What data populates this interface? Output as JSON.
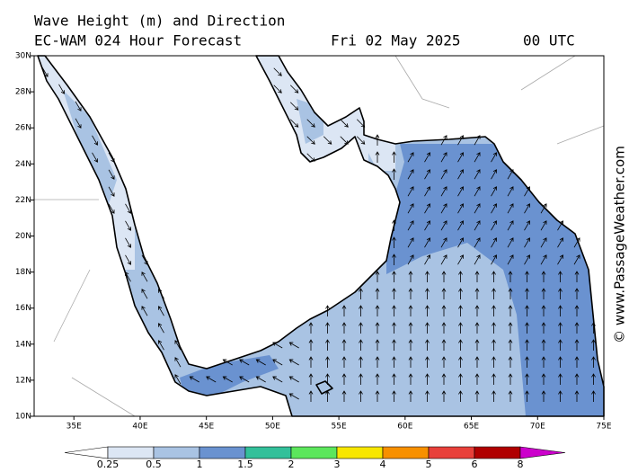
{
  "header": {
    "title": "Wave Height (m) and Direction",
    "model": "EC-WAM 024 Hour Forecast",
    "date": "Fri 02 May 2025",
    "time": "00 UTC"
  },
  "map": {
    "lon_range": [
      32,
      75
    ],
    "lat_range": [
      10,
      30
    ],
    "lon_ticks": [
      {
        "value": 35,
        "label": "35E"
      },
      {
        "value": 40,
        "label": "40E"
      },
      {
        "value": 45,
        "label": "45E"
      },
      {
        "value": 50,
        "label": "50E"
      },
      {
        "value": 55,
        "label": "55E"
      },
      {
        "value": 60,
        "label": "60E"
      },
      {
        "value": 65,
        "label": "65E"
      },
      {
        "value": 70,
        "label": "70E"
      },
      {
        "value": 75,
        "label": "75E"
      }
    ],
    "lat_ticks": [
      {
        "value": 10,
        "label": "10N"
      },
      {
        "value": 12,
        "label": "12N"
      },
      {
        "value": 14,
        "label": "14N"
      },
      {
        "value": 16,
        "label": "16N"
      },
      {
        "value": 18,
        "label": "18N"
      },
      {
        "value": 20,
        "label": "20N"
      },
      {
        "value": 22,
        "label": "22N"
      },
      {
        "value": 24,
        "label": "24N"
      },
      {
        "value": 26,
        "label": "26N"
      },
      {
        "value": 28,
        "label": "28N"
      },
      {
        "value": 30,
        "label": "30N"
      }
    ]
  },
  "colorbar": {
    "labels": [
      "0.25",
      "0.5",
      "1",
      "1.5",
      "2",
      "3",
      "4",
      "5",
      "6",
      "8"
    ],
    "colors": [
      "#dce6f4",
      "#a9c3e3",
      "#6a92d0",
      "#33c09a",
      "#5ce65c",
      "#f7e600",
      "#f79000",
      "#e8403a",
      "#b00000"
    ],
    "over_color": "#cc00cc"
  },
  "watermark": "© www.PassageWeather.com"
}
